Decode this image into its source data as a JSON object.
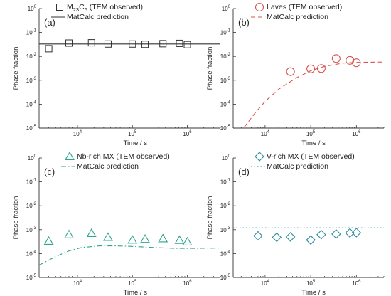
{
  "chart_data": [
    {
      "type": "scatter",
      "panel_label": "(a)",
      "xlabel": "Time / s",
      "ylabel": "Phase fraction",
      "x_scale": "log",
      "y_scale": "log",
      "xlim": [
        2000,
        4000000
      ],
      "ylim": [
        1e-05,
        1
      ],
      "x_ticks": [
        {
          "value": 10000,
          "base": "10",
          "exp": "4"
        },
        {
          "value": 100000,
          "base": "10",
          "exp": "5"
        },
        {
          "value": 1000000,
          "base": "10",
          "exp": "6"
        }
      ],
      "y_ticks": [
        {
          "value": 1e-05,
          "base": "10",
          "exp": "-5"
        },
        {
          "value": 0.0001,
          "base": "10",
          "exp": "-4"
        },
        {
          "value": 0.001,
          "base": "10",
          "exp": "-3"
        },
        {
          "value": 0.01,
          "base": "10",
          "exp": "-2"
        },
        {
          "value": 0.1,
          "base": "10",
          "exp": "-1"
        },
        {
          "value": 1,
          "base": "10",
          "exp": "0"
        }
      ],
      "legend_placement": "top-right",
      "observed": {
        "name_main": "M",
        "name_sub1": "23",
        "name_mid": "C",
        "name_sub2": "6",
        "name_suffix": " (TEM observed)",
        "marker": "square",
        "color": "#333333",
        "x": [
          3000,
          7000,
          18000,
          36000,
          100000,
          170000,
          360000,
          720000,
          1000000
        ],
        "y": [
          0.021,
          0.036,
          0.037,
          0.033,
          0.033,
          0.032,
          0.034,
          0.035,
          0.031
        ]
      },
      "prediction": {
        "name": "MatCalc prediction",
        "style": "solid",
        "color": "#333333",
        "x": [
          2000,
          4000000
        ],
        "y": [
          0.033,
          0.033
        ]
      }
    },
    {
      "type": "scatter",
      "panel_label": "(b)",
      "xlabel": "Time / s",
      "ylabel": "Phase fraction",
      "x_scale": "log",
      "y_scale": "log",
      "xlim": [
        2000,
        4000000
      ],
      "ylim": [
        1e-05,
        1
      ],
      "x_ticks": [
        {
          "value": 10000,
          "base": "10",
          "exp": "4"
        },
        {
          "value": 100000,
          "base": "10",
          "exp": "5"
        },
        {
          "value": 1000000,
          "base": "10",
          "exp": "6"
        }
      ],
      "y_ticks": [
        {
          "value": 1e-05,
          "base": "10",
          "exp": "-5"
        },
        {
          "value": 0.0001,
          "base": "10",
          "exp": "-4"
        },
        {
          "value": 0.001,
          "base": "10",
          "exp": "-3"
        },
        {
          "value": 0.01,
          "base": "10",
          "exp": "-2"
        },
        {
          "value": 0.1,
          "base": "10",
          "exp": "-1"
        },
        {
          "value": 1,
          "base": "10",
          "exp": "0"
        }
      ],
      "legend_placement": "top-right",
      "observed": {
        "name": "Laves (TEM observed)",
        "marker": "circle",
        "color": "#d9534f",
        "x": [
          36000,
          100000,
          170000,
          360000,
          720000,
          1000000
        ],
        "y": [
          0.0023,
          0.003,
          0.0031,
          0.0081,
          0.0068,
          0.0054
        ]
      },
      "prediction": {
        "name": "MatCalc prediction",
        "style": "dashed",
        "color": "#d9534f",
        "x": [
          3500,
          6000,
          10000,
          20000,
          50000,
          100000,
          200000,
          500000,
          1000000,
          4000000
        ],
        "y": [
          1.1e-05,
          4.2e-05,
          0.00013,
          0.00043,
          0.0013,
          0.0025,
          0.0038,
          0.0052,
          0.0056,
          0.0058
        ]
      }
    },
    {
      "type": "scatter",
      "panel_label": "(c)",
      "xlabel": "Time / s",
      "ylabel": "Phase fraction",
      "x_scale": "log",
      "y_scale": "log",
      "xlim": [
        2000,
        4000000
      ],
      "ylim": [
        1e-05,
        1
      ],
      "x_ticks": [
        {
          "value": 10000,
          "base": "10",
          "exp": "4"
        },
        {
          "value": 100000,
          "base": "10",
          "exp": "5"
        },
        {
          "value": 1000000,
          "base": "10",
          "exp": "6"
        }
      ],
      "y_ticks": [
        {
          "value": 1e-05,
          "base": "10",
          "exp": "-5"
        },
        {
          "value": 0.0001,
          "base": "10",
          "exp": "-4"
        },
        {
          "value": 0.001,
          "base": "10",
          "exp": "-3"
        },
        {
          "value": 0.01,
          "base": "10",
          "exp": "-2"
        },
        {
          "value": 0.1,
          "base": "10",
          "exp": "-1"
        },
        {
          "value": 1,
          "base": "10",
          "exp": "0"
        }
      ],
      "legend_placement": "top-right",
      "observed": {
        "name": "Nb-rich MX (TEM observed)",
        "marker": "triangle",
        "color": "#2ca58d",
        "x": [
          3000,
          7000,
          18000,
          36000,
          100000,
          170000,
          360000,
          720000,
          1000000
        ],
        "y": [
          0.00033,
          0.00062,
          0.0007,
          0.00048,
          0.00037,
          0.0004,
          0.00042,
          0.00036,
          0.00031
        ]
      },
      "prediction": {
        "name": "MatCalc prediction",
        "style": "dash-dot",
        "color": "#2ca58d",
        "x": [
          2000,
          4000,
          7000,
          12000,
          25000,
          50000,
          100000,
          250000,
          600000,
          1200000,
          4000000
        ],
        "y": [
          3.3e-05,
          7.5e-05,
          0.00013,
          0.00018,
          0.00021,
          0.00021,
          0.0002,
          0.00018,
          0.000165,
          0.000165,
          0.00017
        ]
      }
    },
    {
      "type": "scatter",
      "panel_label": "(d)",
      "xlabel": "Time / s",
      "ylabel": "Phase fraction",
      "x_scale": "log",
      "y_scale": "log",
      "xlim": [
        2000,
        4000000
      ],
      "ylim": [
        1e-05,
        1
      ],
      "x_ticks": [
        {
          "value": 10000,
          "base": "10",
          "exp": "4"
        },
        {
          "value": 100000,
          "base": "10",
          "exp": "5"
        },
        {
          "value": 1000000,
          "base": "10",
          "exp": "6"
        }
      ],
      "y_ticks": [
        {
          "value": 1e-05,
          "base": "10",
          "exp": "-5"
        },
        {
          "value": 0.0001,
          "base": "10",
          "exp": "-4"
        },
        {
          "value": 0.001,
          "base": "10",
          "exp": "-3"
        },
        {
          "value": 0.01,
          "base": "10",
          "exp": "-2"
        },
        {
          "value": 0.1,
          "base": "10",
          "exp": "-1"
        },
        {
          "value": 1,
          "base": "10",
          "exp": "0"
        }
      ],
      "legend_placement": "top-right",
      "observed": {
        "name": "V-rich MX (TEM observed)",
        "marker": "diamond",
        "color": "#2b8c9e",
        "x": [
          7000,
          18000,
          36000,
          100000,
          170000,
          360000,
          720000,
          1000000
        ],
        "y": [
          0.00055,
          0.00048,
          0.0005,
          0.00037,
          0.00062,
          0.00066,
          0.00073,
          0.00075
        ]
      },
      "prediction": {
        "name": "MatCalc prediction",
        "style": "dotted",
        "color": "#2b8c9e",
        "x": [
          2000,
          4000000
        ],
        "y": [
          0.0012,
          0.0012
        ]
      }
    }
  ]
}
